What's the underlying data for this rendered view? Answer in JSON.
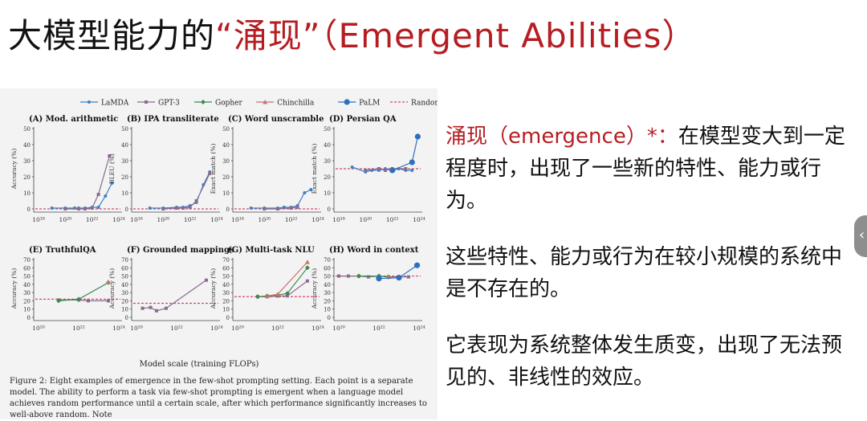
{
  "slide": {
    "title_main": "大模型能力的",
    "title_quote": "“涌现”",
    "title_paren": "（Emergent Abilities）"
  },
  "legend": [
    "LaMDA",
    "GPT-3",
    "Gopher",
    "Chinchilla",
    "PaLM",
    "Random"
  ],
  "colors": {
    "LaMDA": "#3f7fc4",
    "GPT-3": "#8a6a8e",
    "Gopher": "#3b8a4f",
    "Chinchilla": "#c9736b",
    "PaLM": "#2f6fbf",
    "Random": "#d6476a",
    "accent": "#b51d22"
  },
  "shared_xlabel": "Model scale (training FLOPs)",
  "caption": "Figure 2: Eight examples of emergence in the few-shot prompting setting. Each point is a separate model. The ability to perform a task via few-shot prompting is emergent when a language model achieves random performance until a certain scale, after which performance significantly increases to well-above random. Note",
  "chart_data": [
    {
      "type": "line",
      "title": "(A) Mod. arithmetic",
      "ylabel": "Accuracy (%)",
      "xlabel": "",
      "xscale": "log",
      "xlim": [
        1e+18,
        1e+24
      ],
      "ylim": [
        0,
        50
      ],
      "yticks": [
        "0",
        "10",
        "20",
        "30",
        "40",
        "50"
      ],
      "xticks": [
        "10¹⁸",
        "10²⁰",
        "10²²",
        "10²⁴"
      ],
      "random": 0,
      "series": [
        {
          "name": "LaMDA",
          "x": [
            1e+19,
            1e+20,
            5e+20,
            1e+21,
            3e+21,
            1e+22,
            3e+22,
            1e+23,
            3e+23
          ],
          "y": [
            0.5,
            0.5,
            0.5,
            0.5,
            0.5,
            1,
            1,
            8,
            16
          ]
        },
        {
          "name": "GPT-3",
          "x": [
            1e+20,
            1e+21,
            3e+21,
            1e+22,
            3e+22,
            2e+23
          ],
          "y": [
            0,
            0,
            0,
            0.5,
            9,
            33
          ]
        }
      ]
    },
    {
      "type": "line",
      "title": "(B) IPA transliterate",
      "ylabel": "BLEU (%)",
      "xlabel": "",
      "xscale": "log",
      "xlim": [
        1e+18,
        1e+24
      ],
      "ylim": [
        0,
        50
      ],
      "yticks": [
        "0",
        "10",
        "20",
        "30",
        "40",
        "50"
      ],
      "xticks": [
        "10¹⁸",
        "10²⁰",
        "10²²",
        "10²⁴"
      ],
      "random": 0,
      "series": [
        {
          "name": "LaMDA",
          "x": [
            1e+19,
            1e+20,
            1e+21,
            3e+21,
            1e+22,
            3e+22,
            1e+23,
            3e+23
          ],
          "y": [
            0.5,
            0.5,
            1,
            1,
            2,
            4,
            15,
            23
          ]
        },
        {
          "name": "GPT-3",
          "x": [
            1e+20,
            1e+21,
            3e+21,
            1e+22,
            3e+22,
            3e+23
          ],
          "y": [
            0,
            0.5,
            0.5,
            1,
            5,
            22
          ]
        }
      ]
    },
    {
      "type": "line",
      "title": "(C) Word unscramble",
      "ylabel": "Exact match (%)",
      "xlabel": "",
      "xscale": "log",
      "xlim": [
        1e+18,
        1e+24
      ],
      "ylim": [
        0,
        50
      ],
      "yticks": [
        "0",
        "10",
        "20",
        "30",
        "40",
        "50"
      ],
      "xticks": [
        "10¹⁸",
        "10²⁰",
        "10²²",
        "10²⁴"
      ],
      "random": 0,
      "series": [
        {
          "name": "LaMDA",
          "x": [
            1e+19,
            1e+20,
            1e+21,
            3e+21,
            1e+22,
            3e+22,
            1e+23,
            3e+23
          ],
          "y": [
            0.5,
            0.5,
            0.5,
            1,
            1,
            2,
            10,
            12
          ]
        },
        {
          "name": "GPT-3",
          "x": [
            1e+20,
            1e+21,
            1e+22,
            3e+22
          ],
          "y": [
            0,
            0,
            0.5,
            1
          ]
        }
      ]
    },
    {
      "type": "line",
      "title": "(D) Persian QA",
      "ylabel": "Exact match (%)",
      "xlabel": "",
      "xscale": "log",
      "xlim": [
        1e+18,
        1e+24
      ],
      "ylim": [
        0,
        50
      ],
      "yticks": [
        "0",
        "10",
        "20",
        "30",
        "40",
        "50"
      ],
      "xticks": [
        "10¹⁸",
        "10²⁰",
        "10²²",
        "10²⁴"
      ],
      "random": 25,
      "series": [
        {
          "name": "LaMDA",
          "x": [
            1e+19,
            1e+20,
            3e+20,
            1e+21,
            3e+21,
            1e+22,
            3e+22,
            1e+23,
            3e+23
          ],
          "y": [
            26,
            23,
            24,
            24,
            25,
            24,
            25,
            24,
            24
          ]
        },
        {
          "name": "GPT-3",
          "x": [
            1e+20,
            1e+21,
            3e+21,
            1e+22,
            1e+23
          ],
          "y": [
            24,
            25,
            24,
            25,
            25
          ]
        },
        {
          "name": "PaLM",
          "x": [
            1e+22,
            3e+23,
            8e+23
          ],
          "y": [
            24,
            29,
            45
          ]
        }
      ]
    },
    {
      "type": "line",
      "title": "(E) TruthfulQA",
      "ylabel": "Accuracy (%)",
      "xlabel": "",
      "xscale": "log",
      "xlim": [
        1e+20,
        1e+24
      ],
      "ylim": [
        0,
        70
      ],
      "yticks": [
        "0",
        "10",
        "20",
        "30",
        "40",
        "50",
        "60",
        "70"
      ],
      "xticks": [
        "10²⁰",
        "10²²",
        "10²⁴"
      ],
      "random": 22,
      "series": [
        {
          "name": "GPT-3",
          "x": [
            1e+21,
            1e+22,
            3e+22,
            3e+23
          ],
          "y": [
            21,
            21,
            20,
            20
          ]
        },
        {
          "name": "Gopher",
          "x": [
            1e+21,
            1e+22,
            3e+23
          ],
          "y": [
            20,
            22,
            42
          ]
        },
        {
          "name": "Chinchilla",
          "x": [
            3e+23
          ],
          "y": [
            43
          ]
        }
      ]
    },
    {
      "type": "line",
      "title": "(F) Grounded mappings",
      "ylabel": "Accuracy (%)",
      "xlabel": "",
      "xscale": "log",
      "xlim": [
        1e+20,
        1e+24
      ],
      "ylim": [
        0,
        70
      ],
      "yticks": [
        "0",
        "10",
        "20",
        "30",
        "40",
        "50",
        "60",
        "70"
      ],
      "xticks": [
        "10²⁰",
        "10²²",
        "10²⁴"
      ],
      "random": 17,
      "series": [
        {
          "name": "GPT-3",
          "x": [
            2e+20,
            5e+20,
            1e+21,
            3e+21,
            3e+23
          ],
          "y": [
            11,
            12,
            8,
            11,
            45
          ]
        }
      ]
    },
    {
      "type": "line",
      "title": "(G) Multi-task NLU",
      "ylabel": "Accuracy (%)",
      "xlabel": "",
      "xscale": "log",
      "xlim": [
        1e+20,
        1e+24
      ],
      "ylim": [
        0,
        70
      ],
      "yticks": [
        "0",
        "10",
        "20",
        "30",
        "40",
        "50",
        "60",
        "70"
      ],
      "xticks": [
        "10²⁰",
        "10²²",
        "10²⁴"
      ],
      "random": 25,
      "series": [
        {
          "name": "GPT-3",
          "x": [
            1e+21,
            3e+21,
            1e+22,
            3e+22,
            3e+23
          ],
          "y": [
            25,
            25,
            26,
            26,
            44
          ]
        },
        {
          "name": "Gopher",
          "x": [
            1e+21,
            3e+21,
            1e+22,
            3e+22,
            3e+23
          ],
          "y": [
            25,
            26,
            27,
            29,
            60
          ]
        },
        {
          "name": "Chinchilla",
          "x": [
            3e+21,
            1e+22,
            3e+23
          ],
          "y": [
            26,
            28,
            67
          ]
        }
      ]
    },
    {
      "type": "line",
      "title": "(H) Word in context",
      "ylabel": "Accuracy (%)",
      "xlabel": "",
      "xscale": "log",
      "xlim": [
        1e+20,
        1e+24
      ],
      "ylim": [
        0,
        70
      ],
      "yticks": [
        "0",
        "10",
        "20",
        "30",
        "40",
        "50",
        "60",
        "70"
      ],
      "xticks": [
        "10²⁰",
        "10²²",
        "10²⁴"
      ],
      "random": 50,
      "series": [
        {
          "name": "GPT-3",
          "x": [
            1e+20,
            3e+20,
            1e+21,
            3e+21,
            1e+22,
            3e+22,
            3e+23
          ],
          "y": [
            50,
            50,
            50,
            49,
            50,
            49,
            49
          ]
        },
        {
          "name": "Gopher",
          "x": [
            1e+21,
            1e+22,
            3e+22
          ],
          "y": [
            50,
            50,
            49
          ]
        },
        {
          "name": "Chinchilla",
          "x": [
            3e+22
          ],
          "y": [
            49
          ]
        },
        {
          "name": "PaLM",
          "x": [
            1e+22,
            1e+23,
            8e+23
          ],
          "y": [
            47,
            48,
            63
          ]
        }
      ]
    }
  ],
  "right": {
    "p1_kw": "涌现（emergence）*：",
    "p1_rest": "在模型变大到一定程度时，出现了一些新的特性、能力或行为。",
    "p2": "这些特性、能力或行为在较小规模的系统中是不存在的。",
    "p3": "它表现为系统整体发生质变，出现了无法预见的、非线性的效应。"
  },
  "handle_icon": "chevron-left-icon"
}
